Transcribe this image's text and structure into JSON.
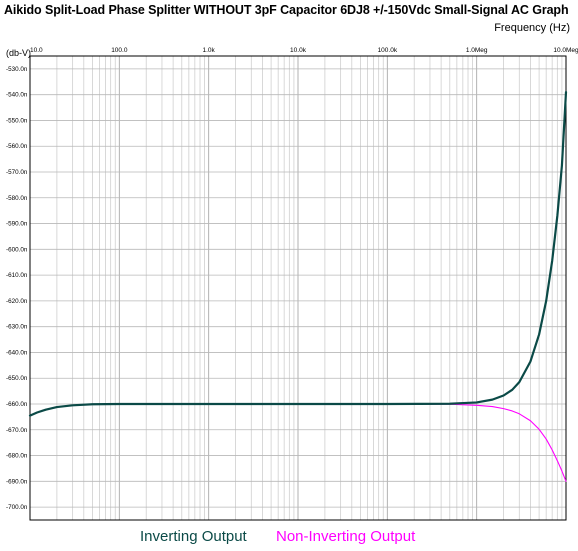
{
  "chart_data": {
    "type": "line",
    "title": "Aikido Split-Load Phase Splitter WITHOUT 3pF Capacitor 6DJ8 +/-150Vdc Small-Signal AC Graph",
    "xlabel": "Frequency   (Hz)",
    "ylabel": "(db-V)",
    "xscale": "log",
    "xlim": [
      10,
      10000000
    ],
    "ylim": [
      -705,
      -525
    ],
    "x_ticks": [
      10,
      100,
      1000,
      10000,
      100000,
      1000000,
      10000000
    ],
    "x_tick_labels": [
      "10.0",
      "100.0",
      "1.0k",
      "10.0k",
      "100.0k",
      "1.0Meg",
      "10.0Meg"
    ],
    "y_ticks": [
      -530,
      -540,
      -550,
      -560,
      -570,
      -580,
      -590,
      -600,
      -610,
      -620,
      -630,
      -640,
      -650,
      -660,
      -670,
      -680,
      -690,
      -700
    ],
    "y_tick_labels": [
      "-530.0n",
      "-540.0n",
      "-550.0n",
      "-560.0n",
      "-570.0n",
      "-580.0n",
      "-590.0n",
      "-600.0n",
      "-610.0n",
      "-620.0n",
      "-630.0n",
      "-640.0n",
      "-650.0n",
      "-660.0n",
      "-670.0n",
      "-680.0n",
      "-690.0n",
      "-700.0n"
    ],
    "grid": true,
    "legend_position": "bottom",
    "series": [
      {
        "name": "Inverting Output",
        "color": "#0b4a47",
        "x": [
          10,
          12,
          15,
          20,
          30,
          50,
          100,
          1000,
          10000,
          100000,
          500000,
          1000000,
          1500000,
          2000000,
          2500000,
          3000000,
          4000000,
          5000000,
          6000000,
          7000000,
          8000000,
          9000000,
          10000000
        ],
        "values": [
          -664.5,
          -663.3,
          -662.2,
          -661.2,
          -660.5,
          -660.1,
          -660.0,
          -660.0,
          -660.0,
          -660.0,
          -659.9,
          -659.4,
          -658.3,
          -656.7,
          -654.5,
          -651.5,
          -643.5,
          -633.0,
          -620.0,
          -604.5,
          -587.0,
          -567.5,
          -539.0
        ]
      },
      {
        "name": "Non-Inverting Output",
        "color": "#ff00ff",
        "x": [
          10,
          12,
          15,
          20,
          30,
          50,
          100,
          1000,
          10000,
          100000,
          500000,
          1000000,
          1500000,
          2000000,
          2500000,
          3000000,
          4000000,
          5000000,
          6000000,
          7000000,
          8000000,
          9000000,
          10000000
        ],
        "values": [
          -664.5,
          -663.3,
          -662.2,
          -661.2,
          -660.5,
          -660.1,
          -660.0,
          -660.0,
          -660.0,
          -660.0,
          -660.1,
          -660.5,
          -661.0,
          -661.8,
          -662.7,
          -663.8,
          -666.5,
          -669.8,
          -673.6,
          -677.8,
          -682.0,
          -686.0,
          -690.0
        ]
      }
    ]
  }
}
